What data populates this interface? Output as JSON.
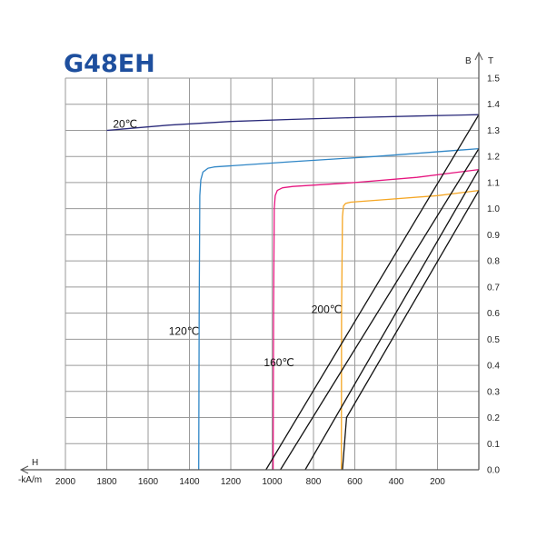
{
  "title": "G48EH",
  "colors": {
    "grid": "#9a9a9a",
    "frame": "#555555",
    "title": "#1e4f9e",
    "load_line": "#111111"
  },
  "chart_data": {
    "type": "line",
    "title": "G48EH",
    "xlabel": "H",
    "xlabel_unit": "-kA/m",
    "ylabel": "B",
    "ylabel_unit": "T",
    "x_direction": "reversed",
    "xlim": [
      2000,
      0
    ],
    "ylim": [
      0,
      1.5
    ],
    "grid": true,
    "x_ticks": [
      "2000",
      "1800",
      "1600",
      "1400",
      "1200",
      "1000",
      "800",
      "600",
      "400",
      "200"
    ],
    "y_ticks": [
      "1.5",
      "1.4",
      "1.3",
      "1.2",
      "1.1",
      "1.0",
      "0.9",
      "0.8",
      "0.7",
      "0.6",
      "0.5",
      "0.4",
      "0.3",
      "0.2",
      "0.1",
      "0.0"
    ],
    "series": [
      {
        "name": "20℃",
        "color": "#2a2a7a",
        "label_at": [
          1770,
          1.325
        ],
        "points": [
          [
            1800,
            1.3
          ],
          [
            1500,
            1.32
          ],
          [
            1200,
            1.334
          ],
          [
            900,
            1.342
          ],
          [
            600,
            1.349
          ],
          [
            300,
            1.355
          ],
          [
            0,
            1.36
          ]
        ]
      },
      {
        "name": "120℃",
        "color": "#2f86c6",
        "label_at": [
          1500,
          0.53
        ],
        "points": [
          [
            1355,
            0.0
          ],
          [
            1353,
            0.6
          ],
          [
            1350,
            1.05
          ],
          [
            1345,
            1.11
          ],
          [
            1335,
            1.14
          ],
          [
            1310,
            1.155
          ],
          [
            1280,
            1.16
          ],
          [
            900,
            1.18
          ],
          [
            500,
            1.2
          ],
          [
            0,
            1.23
          ]
        ]
      },
      {
        "name": "160℃",
        "color": "#e6157f",
        "label_at": [
          1040,
          0.41
        ],
        "points": [
          [
            995,
            0.0
          ],
          [
            993,
            0.6
          ],
          [
            990,
            1.0
          ],
          [
            985,
            1.05
          ],
          [
            975,
            1.07
          ],
          [
            950,
            1.08
          ],
          [
            900,
            1.085
          ],
          [
            600,
            1.1
          ],
          [
            300,
            1.12
          ],
          [
            0,
            1.15
          ]
        ]
      },
      {
        "name": "200℃",
        "color": "#f5a623",
        "label_at": [
          810,
          0.615
        ],
        "points": [
          [
            665,
            0.0
          ],
          [
            664,
            0.6
          ],
          [
            660,
            0.97
          ],
          [
            655,
            1.01
          ],
          [
            645,
            1.02
          ],
          [
            620,
            1.025
          ],
          [
            450,
            1.035
          ],
          [
            200,
            1.05
          ],
          [
            0,
            1.07
          ]
        ]
      },
      {
        "name": "",
        "color": "#111111",
        "points": [
          [
            1030,
            0.0
          ],
          [
            0,
            1.36
          ]
        ]
      },
      {
        "name": "",
        "color": "#111111",
        "points": [
          [
            960,
            0.0
          ],
          [
            0,
            1.23
          ]
        ]
      },
      {
        "name": "",
        "color": "#111111",
        "points": [
          [
            840,
            0.0
          ],
          [
            0,
            1.15
          ]
        ]
      },
      {
        "name": "",
        "color": "#111111",
        "points": [
          [
            660,
            0.0
          ],
          [
            640,
            0.2
          ],
          [
            0,
            1.07
          ]
        ]
      }
    ]
  }
}
